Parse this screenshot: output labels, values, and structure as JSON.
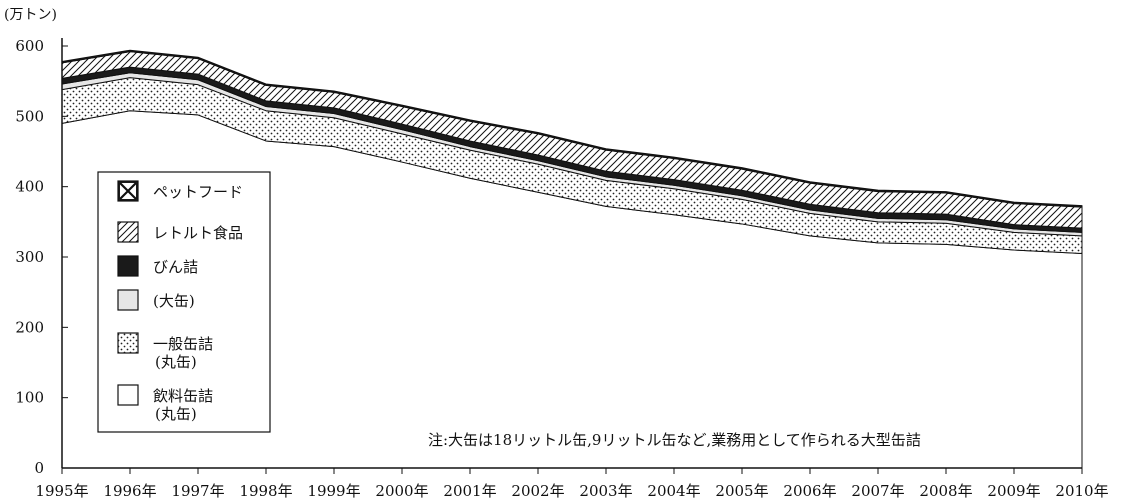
{
  "chart_data": {
    "type": "area",
    "unit_label": "(万トン)",
    "x": [
      "1995年",
      "1996年",
      "1997年",
      "1998年",
      "1999年",
      "2000年",
      "2001年",
      "2002年",
      "2003年",
      "2004年",
      "2005年",
      "2006年",
      "2007年",
      "2008年",
      "2009年",
      "2010年"
    ],
    "ylim": [
      0,
      600
    ],
    "y_ticks": [
      "0",
      "100",
      "200",
      "300",
      "400",
      "500",
      "600"
    ],
    "stacked": true,
    "series": [
      {
        "name": "飲料缶詰",
        "name2": "(丸缶)",
        "pattern": "blank",
        "values": [
          490,
          508,
          502,
          465,
          457,
          435,
          412,
          392,
          372,
          360,
          347,
          330,
          320,
          318,
          310,
          305
        ]
      },
      {
        "name": "一般缶詰",
        "name2": "(丸缶)",
        "pattern": "dots",
        "values": [
          48,
          47,
          43,
          43,
          41,
          40,
          40,
          40,
          37,
          37,
          35,
          32,
          30,
          30,
          25,
          25
        ]
      },
      {
        "name": "(大缶)",
        "name2": "",
        "pattern": "lightgray",
        "values": [
          8,
          7,
          7,
          6,
          6,
          6,
          5,
          5,
          5,
          5,
          5,
          5,
          5,
          5,
          5,
          5
        ]
      },
      {
        "name": "びん詰",
        "name2": "",
        "pattern": "black",
        "values": [
          8,
          8,
          8,
          8,
          8,
          8,
          8,
          8,
          8,
          8,
          8,
          8,
          8,
          8,
          6,
          6
        ]
      },
      {
        "name": "レトルト食品",
        "name2": "",
        "pattern": "hatch",
        "values": [
          22,
          22,
          22,
          22,
          22,
          25,
          28,
          30,
          30,
          30,
          30,
          30,
          30,
          30,
          30,
          30
        ]
      },
      {
        "name": "ペットフード",
        "name2": "",
        "pattern": "xbox",
        "values": [
          2,
          2,
          2,
          2,
          2,
          2,
          2,
          2,
          2,
          2,
          2,
          2,
          2,
          2,
          2,
          2
        ]
      }
    ],
    "legend_order": [
      5,
      4,
      3,
      2,
      1,
      0
    ],
    "legend_position": "left",
    "note": "注:大缶は18リットル缶,9リットル缶など,業務用として作られる大型缶詰",
    "grid": false
  }
}
